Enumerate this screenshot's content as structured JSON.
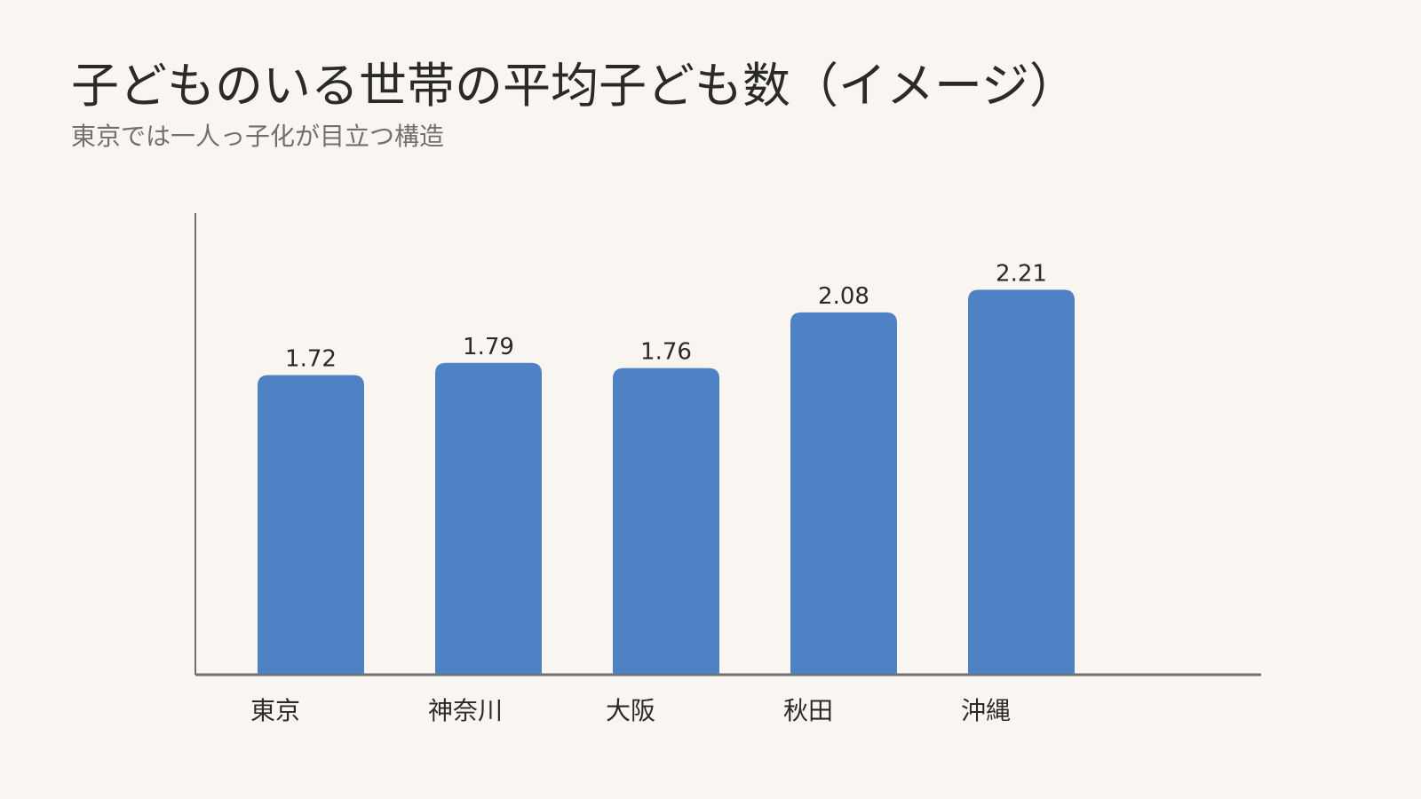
{
  "header": {
    "title": "子どものいる世帯の平均子ども数（イメージ）",
    "subtitle": "東京では一人っ子化が目立つ構造"
  },
  "colors": {
    "bar": "#4f81c5",
    "axis": "#707070",
    "text": "#2a2a2a",
    "background": "#f9f5f0"
  },
  "chart_data": {
    "type": "bar",
    "categories": [
      "東京",
      "神奈川",
      "大阪",
      "秋田",
      "沖縄"
    ],
    "values": [
      1.72,
      1.79,
      1.76,
      2.08,
      2.21
    ],
    "value_labels": [
      "1.72",
      "1.79",
      "1.76",
      "2.08",
      "2.21"
    ],
    "title": "子どものいる世帯の平均子ども数（イメージ）",
    "subtitle": "東京では一人っ子化が目立つ構造",
    "xlabel": "",
    "ylabel": "",
    "ylim": [
      0,
      2.65
    ],
    "grid": false,
    "legend": "none"
  }
}
